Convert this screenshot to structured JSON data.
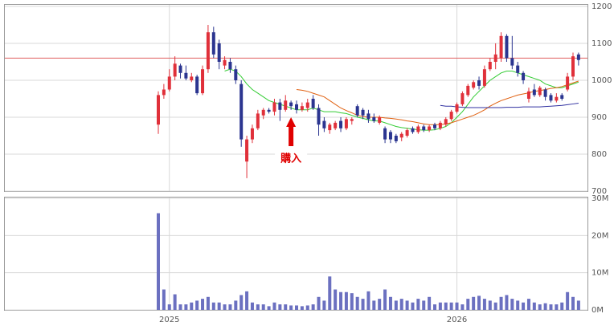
{
  "chart_data": [
    {
      "type": "candlestick",
      "ylim": [
        700,
        1200
      ],
      "yticks": [
        700,
        800,
        900,
        1000,
        1100,
        1200
      ],
      "up_color": "#e0303a",
      "down_color": "#2b3590",
      "open": [
        880,
        960,
        975,
        1010,
        1040,
        1020,
        1000,
        1010,
        965,
        1030,
        1130,
        1100,
        1040,
        1050,
        1030,
        990,
        780,
        840,
        870,
        905,
        920,
        915,
        940,
        920,
        940,
        935,
        920,
        925,
        950,
        925,
        890,
        865,
        870,
        890,
        870,
        890,
        930,
        920,
        910,
        900,
        885,
        870,
        860,
        850,
        845,
        850,
        870,
        860,
        875,
        865,
        880,
        870,
        880,
        895,
        915,
        935,
        960,
        980,
        1000,
        985,
        1030,
        1050,
        1060,
        1120,
        1060,
        1040,
        1020,
        950,
        975,
        960,
        975,
        960,
        945,
        960,
        975,
        1010,
        1070
      ],
      "high": [
        970,
        990,
        1030,
        1065,
        1045,
        1040,
        1020,
        1015,
        1040,
        1150,
        1145,
        1110,
        1065,
        1060,
        1040,
        1000,
        850,
        880,
        920,
        925,
        925,
        950,
        950,
        960,
        945,
        945,
        940,
        950,
        960,
        935,
        900,
        885,
        890,
        900,
        900,
        900,
        935,
        925,
        920,
        910,
        905,
        875,
        865,
        855,
        860,
        870,
        875,
        880,
        880,
        880,
        885,
        890,
        900,
        920,
        940,
        970,
        990,
        1000,
        1010,
        1040,
        1060,
        1100,
        1130,
        1125,
        1120,
        1050,
        1025,
        980,
        990,
        985,
        980,
        965,
        965,
        965,
        1020,
        1075,
        1075
      ],
      "low": [
        855,
        950,
        970,
        1000,
        1005,
        1000,
        995,
        960,
        960,
        1020,
        1060,
        1030,
        1030,
        1020,
        990,
        820,
        735,
        830,
        865,
        895,
        910,
        905,
        890,
        915,
        920,
        910,
        915,
        915,
        920,
        850,
        860,
        855,
        865,
        860,
        865,
        880,
        900,
        895,
        885,
        885,
        880,
        830,
        830,
        830,
        835,
        845,
        855,
        855,
        860,
        860,
        865,
        865,
        875,
        890,
        910,
        930,
        955,
        975,
        975,
        980,
        1025,
        1030,
        1050,
        1050,
        1030,
        1010,
        990,
        940,
        955,
        955,
        945,
        940,
        940,
        945,
        970,
        1000,
        1040
      ],
      "close": [
        960,
        975,
        1010,
        1045,
        1020,
        1005,
        1010,
        965,
        1030,
        1130,
        1070,
        1050,
        1055,
        1030,
        1000,
        840,
        840,
        870,
        910,
        920,
        915,
        940,
        920,
        945,
        930,
        920,
        930,
        940,
        925,
        880,
        870,
        880,
        885,
        870,
        895,
        895,
        905,
        905,
        895,
        890,
        900,
        840,
        840,
        835,
        855,
        865,
        860,
        875,
        865,
        875,
        870,
        885,
        895,
        915,
        935,
        965,
        985,
        995,
        985,
        1030,
        1050,
        1070,
        1120,
        1060,
        1040,
        1020,
        1000,
        970,
        960,
        980,
        955,
        945,
        955,
        950,
        1010,
        1065,
        1055
      ],
      "series": [
        {
          "color": "#33cc33",
          "values": [
            null,
            null,
            null,
            null,
            null,
            null,
            null,
            null,
            null,
            null,
            null,
            null,
            1025,
            1030,
            1025,
            1010,
            990,
            975,
            965,
            955,
            945,
            940,
            935,
            930,
            925,
            920,
            920,
            920,
            925,
            920,
            915,
            915,
            915,
            912,
            910,
            905,
            900,
            897,
            893,
            890,
            890,
            885,
            880,
            875,
            872,
            870,
            868,
            866,
            865,
            865,
            866,
            870,
            875,
            885,
            900,
            915,
            935,
            955,
            970,
            985,
            1000,
            1010,
            1020,
            1025,
            1025,
            1020,
            1015,
            1010,
            1005,
            1000,
            990,
            985,
            980,
            980,
            985,
            990,
            995
          ]
        },
        {
          "color": "#e06010",
          "values": [
            null,
            null,
            null,
            null,
            null,
            null,
            null,
            null,
            null,
            null,
            null,
            null,
            null,
            null,
            null,
            null,
            null,
            null,
            null,
            null,
            null,
            null,
            null,
            null,
            null,
            975,
            973,
            970,
            965,
            960,
            955,
            945,
            935,
            925,
            918,
            912,
            905,
            902,
            900,
            900,
            900,
            898,
            897,
            895,
            893,
            890,
            888,
            885,
            882,
            880,
            880,
            880,
            882,
            885,
            890,
            895,
            900,
            905,
            912,
            920,
            930,
            938,
            945,
            950,
            955,
            960,
            963,
            966,
            970,
            972,
            975,
            978,
            980,
            983,
            988,
            993,
            998
          ]
        },
        {
          "color": "#3030a0",
          "values": [
            null,
            null,
            null,
            null,
            null,
            null,
            null,
            null,
            null,
            null,
            null,
            null,
            null,
            null,
            null,
            null,
            null,
            null,
            null,
            null,
            null,
            null,
            null,
            null,
            null,
            null,
            null,
            null,
            null,
            null,
            null,
            null,
            null,
            null,
            null,
            null,
            null,
            null,
            null,
            null,
            null,
            null,
            null,
            null,
            null,
            null,
            null,
            null,
            null,
            null,
            null,
            932,
            930,
            930,
            928,
            927,
            926,
            926,
            926,
            926,
            926,
            926,
            926,
            927,
            927,
            927,
            928,
            928,
            928,
            928,
            929,
            930,
            931,
            932,
            934,
            936,
            938
          ]
        }
      ],
      "reference_line": 1060,
      "reference_color": "#e06060",
      "annotation": {
        "text": "購入",
        "index": 24,
        "color": "#e00000"
      }
    },
    {
      "type": "bar",
      "color": "#6b70c0",
      "ylim": [
        0,
        30
      ],
      "yticks": [
        {
          "value": 0,
          "label": "0M"
        },
        {
          "value": 10,
          "label": "10M"
        },
        {
          "value": 20,
          "label": "20M"
        },
        {
          "value": 30,
          "label": "30M"
        }
      ],
      "categories": [
        null,
        null,
        "2025",
        null,
        null,
        null,
        null,
        null,
        null,
        null,
        null,
        null,
        null,
        null,
        null,
        null,
        null,
        null,
        null,
        null,
        null,
        null,
        null,
        null,
        null,
        null,
        null,
        null,
        null,
        null,
        null,
        null,
        null,
        null,
        null,
        null,
        null,
        null,
        null,
        null,
        null,
        null,
        null,
        null,
        null,
        null,
        null,
        null,
        null,
        null,
        null,
        null,
        null,
        null,
        "2026",
        null,
        null,
        null,
        null,
        null,
        null,
        null,
        null,
        null,
        null,
        null,
        null,
        null,
        null,
        null,
        null,
        null,
        null,
        null,
        null,
        null,
        null
      ],
      "values": [
        26,
        5.5,
        1.5,
        4.2,
        1.5,
        1.5,
        2,
        2.5,
        3,
        3.5,
        2,
        2,
        1.5,
        1.5,
        2.5,
        4,
        5,
        2,
        1.5,
        1.5,
        1,
        2,
        1.5,
        1.5,
        1.2,
        1.2,
        1,
        1.2,
        1.5,
        3.5,
        2.5,
        9,
        5.5,
        4.8,
        4.8,
        4.5,
        3.5,
        3,
        5,
        2.5,
        3,
        5.5,
        3.5,
        2.5,
        3,
        2.5,
        2,
        3,
        2.5,
        3.5,
        1.5,
        2,
        2,
        2,
        2,
        1.5,
        3,
        3.5,
        3.8,
        3,
        2.5,
        2,
        3.5,
        4,
        3,
        2.5,
        2,
        3,
        2,
        1.5,
        1.8,
        1.5,
        1.5,
        2,
        4.8,
        3.5,
        2.5
      ]
    }
  ]
}
